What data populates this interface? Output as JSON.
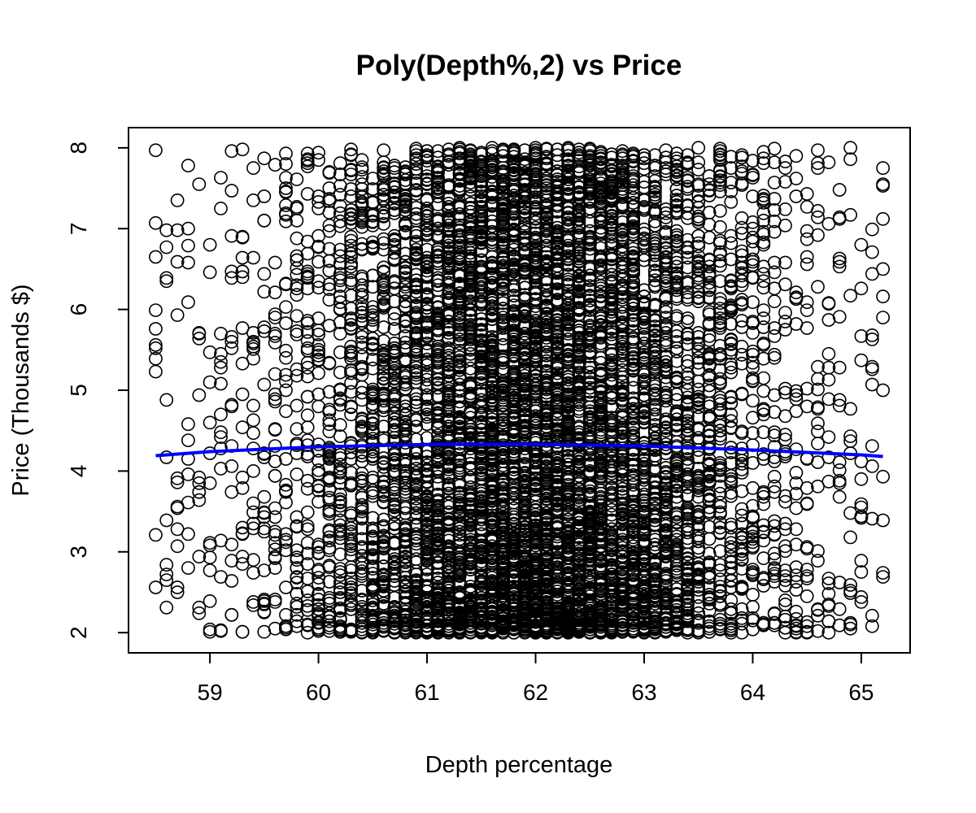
{
  "chart_data": {
    "type": "scatter",
    "title": "Poly(Depth%,2) vs Price",
    "xlabel": "Depth percentage",
    "ylabel": "Price (Thousands $)",
    "xlim": [
      58.25,
      65.45
    ],
    "ylim": [
      1.75,
      8.25
    ],
    "x_ticks": [
      59,
      60,
      61,
      62,
      63,
      64,
      65
    ],
    "y_ticks": [
      2,
      3,
      4,
      5,
      6,
      7,
      8
    ],
    "x_tick_labels": [
      "59",
      "60",
      "61",
      "62",
      "63",
      "64",
      "65"
    ],
    "y_tick_labels": [
      "2",
      "3",
      "4",
      "5",
      "6",
      "7",
      "8"
    ],
    "grid": false,
    "legend": "none",
    "point_shape": "open-circle",
    "point_color": "#000000",
    "fit_color": "#0000ff",
    "scatter": {
      "x_range": [
        58.5,
        65.2
      ],
      "x_step": 0.1,
      "y_range": [
        2.0,
        8.0
      ],
      "peak_density_x": 62.0,
      "approx_points": 8000
    },
    "fit_curve": {
      "x": [
        58.5,
        59.0,
        60.0,
        61.0,
        61.5,
        62.0,
        63.0,
        64.0,
        65.0,
        65.2
      ],
      "y": [
        4.19,
        4.24,
        4.3,
        4.33,
        4.33,
        4.33,
        4.31,
        4.26,
        4.2,
        4.18
      ]
    }
  }
}
